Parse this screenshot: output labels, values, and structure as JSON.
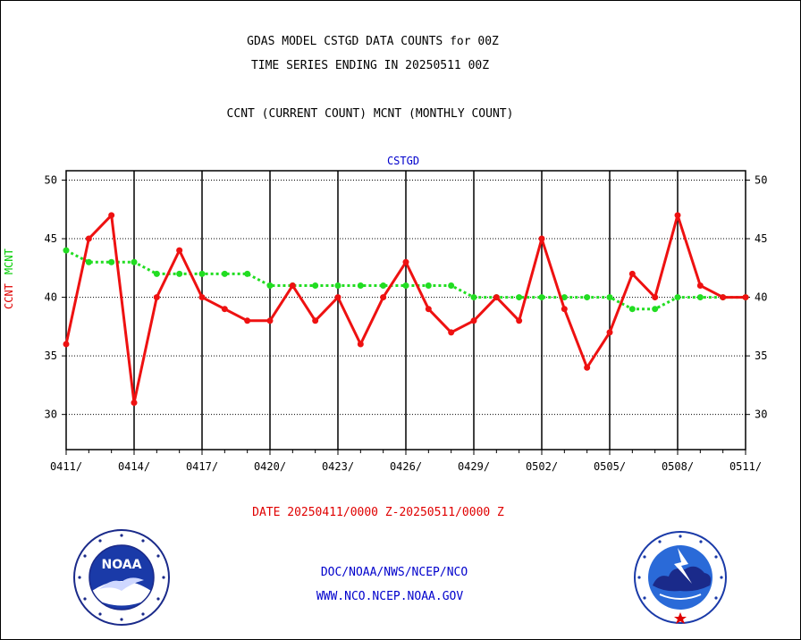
{
  "header": {
    "title_line1": "GDAS MODEL CSTGD DATA COUNTS for 00Z",
    "title_line2": "TIME SERIES ENDING IN 20250511 00Z",
    "subtitle": "CCNT (CURRENT COUNT) MCNT (MONTHLY COUNT)"
  },
  "footer": {
    "date_range": "DATE 20250411/0000 Z-20250511/0000 Z",
    "credit_line1": "DOC/NOAA/NWS/NCEP/NCO",
    "credit_line2": "WWW.NCO.NCEP.NOAA.GOV"
  },
  "logos": {
    "left": "noaa-logo",
    "right": "national-weather-service-logo"
  },
  "colors": {
    "ccnt": "#ee1111",
    "mcnt": "#22dd22",
    "panel_label": "#0000cc",
    "credit_text": "#0000cc",
    "date_text": "#e00000"
  },
  "chart_data": {
    "type": "line",
    "panel_label": "CSTGD",
    "ylabel": "CCNT  MCNT",
    "ylim": [
      27,
      50.8
    ],
    "yticks": [
      30,
      35,
      40,
      45,
      50
    ],
    "grid": true,
    "x": [
      "0411",
      "0412",
      "0413",
      "0414",
      "0415",
      "0416",
      "0417",
      "0418",
      "0419",
      "0420",
      "0421",
      "0422",
      "0423",
      "0424",
      "0425",
      "0426",
      "0427",
      "0428",
      "0429",
      "0430",
      "0501",
      "0502",
      "0503",
      "0504",
      "0505",
      "0506",
      "0507",
      "0508",
      "0509",
      "0510",
      "0511"
    ],
    "xticks": [
      "0411/",
      "0414/",
      "0417/",
      "0420/",
      "0423/",
      "0426/",
      "0429/",
      "0502/",
      "0505/",
      "0508/",
      "0511/"
    ],
    "series": [
      {
        "name": "CCNT",
        "values": [
          36,
          45,
          47,
          31,
          40,
          44,
          40,
          39,
          38,
          38,
          41,
          38,
          40,
          36,
          40,
          43,
          39,
          37,
          38,
          40,
          38,
          45,
          39,
          34,
          37,
          42,
          40,
          47,
          41,
          40,
          40
        ]
      },
      {
        "name": "MCNT",
        "values": [
          44,
          43,
          43,
          43,
          42,
          42,
          42,
          42,
          42,
          41,
          41,
          41,
          41,
          41,
          41,
          41,
          41,
          41,
          40,
          40,
          40,
          40,
          40,
          40,
          40,
          39,
          39,
          40,
          40,
          40,
          40
        ]
      }
    ]
  }
}
